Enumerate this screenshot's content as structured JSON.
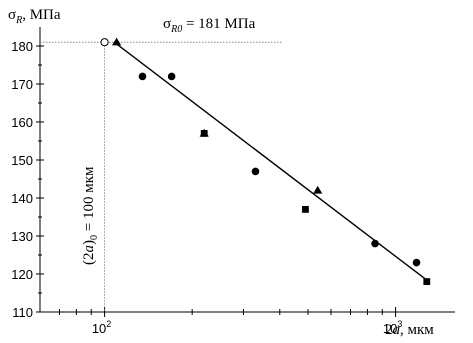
{
  "chart_data": {
    "type": "scatter",
    "x_scale": "log",
    "xlim": [
      60,
      1600
    ],
    "ylim": [
      110,
      185
    ],
    "y_ticks": [
      110,
      120,
      130,
      140,
      150,
      160,
      170,
      180
    ],
    "y_minor_step": 5,
    "x_ticks": [
      {
        "value": 100,
        "base": "10",
        "exp": "2"
      },
      {
        "value": 1000,
        "base": "10",
        "exp": "3"
      }
    ],
    "ylabel": {
      "main": "σ",
      "sub": "R",
      "suffix": ", МПа"
    },
    "xlabel": {
      "main": "2",
      "italic": "a",
      "suffix": ", мкм"
    },
    "grid": false,
    "series": [
      {
        "marker": "circle",
        "x": [
          135,
          170,
          330,
          850,
          1180
        ],
        "y": [
          172,
          172,
          147,
          128,
          123
        ]
      },
      {
        "marker": "triangle",
        "x": [
          110,
          220,
          540
        ],
        "y": [
          181,
          157,
          142
        ]
      },
      {
        "marker": "square",
        "x": [
          220,
          490,
          1280
        ],
        "y": [
          157,
          137,
          118
        ]
      }
    ],
    "fit_line": {
      "x": [
        108,
        1300
      ],
      "y": [
        181,
        118
      ]
    },
    "reference_point": {
      "x": 100,
      "y": 181,
      "marker": "open-circle"
    },
    "annotations": {
      "sigma_r0": {
        "main": "σ",
        "sub": "R0",
        "text": " = 181 МПа"
      },
      "a0": {
        "main": "(2",
        "italic": "a",
        "close": ")",
        "sub": "0",
        "text": " = 100 мкм"
      }
    }
  }
}
